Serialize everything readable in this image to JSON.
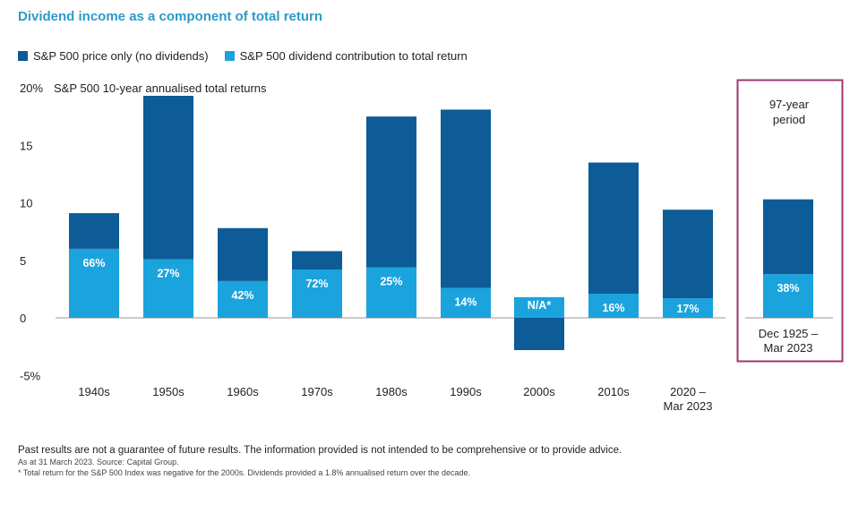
{
  "colors": {
    "price": "#0d5c97",
    "dividend": "#1ba3dd",
    "title": "#2a9cc8",
    "highlight_box": "#a0356e"
  },
  "chart_data": {
    "type": "bar",
    "stacked": true,
    "title": "Dividend income as a component of total return",
    "ylabel": "S&P 500 10-year annualised total returns",
    "ylim": [
      -5,
      20
    ],
    "yticks": [
      20,
      15,
      10,
      5,
      0,
      -5
    ],
    "ytick_labels": [
      "20%",
      "15",
      "10",
      "5",
      "0",
      "-5%"
    ],
    "legend_position": "top-left",
    "grid": false,
    "categories": [
      "1940s",
      "1950s",
      "1960s",
      "1970s",
      "1980s",
      "1990s",
      "2000s",
      "2010s",
      "2020 – Mar 2023",
      "Dec 1925 – Mar 2023"
    ],
    "series": [
      {
        "name": "S&P 500 price only (no dividends)",
        "values": [
          3.1,
          14.2,
          4.6,
          1.6,
          13.1,
          15.5,
          -2.8,
          11.4,
          7.7,
          6.5
        ]
      },
      {
        "name": "S&P 500 dividend contribution to total return",
        "values": [
          6.0,
          5.1,
          3.2,
          4.2,
          4.4,
          2.6,
          1.8,
          2.1,
          1.7,
          3.8
        ]
      }
    ],
    "data_labels": [
      "66%",
      "27%",
      "42%",
      "72%",
      "25%",
      "14%",
      "N/A*",
      "16%",
      "17%",
      "38%"
    ],
    "highlight": {
      "label": "97-year period",
      "category": "Dec 1925 – Mar 2023"
    }
  },
  "footnotes": {
    "disclaimer": "Past results are not a guarantee of future results. The information provided is not intended to be comprehensive or to provide advice.",
    "source": "As at 31 March 2023. Source: Capital Group.",
    "note": "* Total return for the S&P 500 Index was negative for the 2000s. Dividends provided a 1.8% annualised return over the decade."
  }
}
